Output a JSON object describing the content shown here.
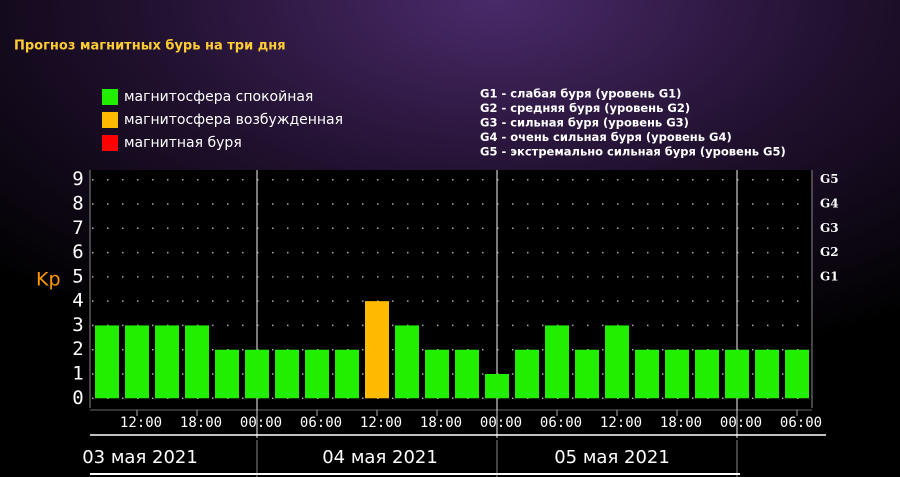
{
  "chart_data": {
    "type": "bar",
    "title": "Прогноз магнитных бурь на три дня",
    "y_label": "Kp",
    "categories": [
      null,
      "12:00",
      null,
      "18:00",
      null,
      "00:00",
      null,
      "06:00",
      null,
      "12:00",
      null,
      "18:00",
      null,
      "00:00",
      null,
      "06:00",
      null,
      "12:00",
      null,
      "18:00",
      null,
      "00:00",
      null,
      "06:00"
    ],
    "values": [
      3,
      3,
      3,
      3,
      2,
      2,
      2,
      2,
      2,
      4,
      3,
      2,
      2,
      1,
      2,
      3,
      2,
      3,
      2,
      2,
      2,
      2,
      2,
      2
    ],
    "colors": [
      "#22ee00",
      "#22ee00",
      "#22ee00",
      "#22ee00",
      "#22ee00",
      "#22ee00",
      "#22ee00",
      "#22ee00",
      "#22ee00",
      "#ffbb00",
      "#22ee00",
      "#22ee00",
      "#22ee00",
      "#22ee00",
      "#22ee00",
      "#22ee00",
      "#22ee00",
      "#22ee00",
      "#22ee00",
      "#22ee00",
      "#22ee00",
      "#22ee00",
      "#22ee00",
      "#22ee00"
    ],
    "days": [
      "03 мая 2021",
      "04 мая 2021",
      "05 мая 2021"
    ],
    "ylim": [
      -0.4,
      9.4
    ],
    "yticks": [
      0,
      1,
      2,
      3,
      4,
      5,
      6,
      7,
      8,
      9
    ],
    "y2ticks": [
      {
        "value": 5,
        "label": "G1"
      },
      {
        "value": 6,
        "label": "G2"
      },
      {
        "value": 7,
        "label": "G3"
      },
      {
        "value": 8,
        "label": "G4"
      },
      {
        "value": 9,
        "label": "G5"
      }
    ],
    "grid": true,
    "legend": [
      {
        "label": "магнитосфера спокойная",
        "color": "#22ee00"
      },
      {
        "label": "магнитосфера возбужденная",
        "color": "#ffbb00"
      },
      {
        "label": "магнитная буря",
        "color": "#ff0000"
      }
    ],
    "storm_legend": [
      "G1 - слабая буря (уровень G1)",
      "G2 - средняя буря (уровень G2)",
      "G3 - сильная буря (уровень G3)",
      "G4 - очень сильная буря (уровень G4)",
      "G5 - экстремально сильная буря (уровень G5)"
    ]
  }
}
